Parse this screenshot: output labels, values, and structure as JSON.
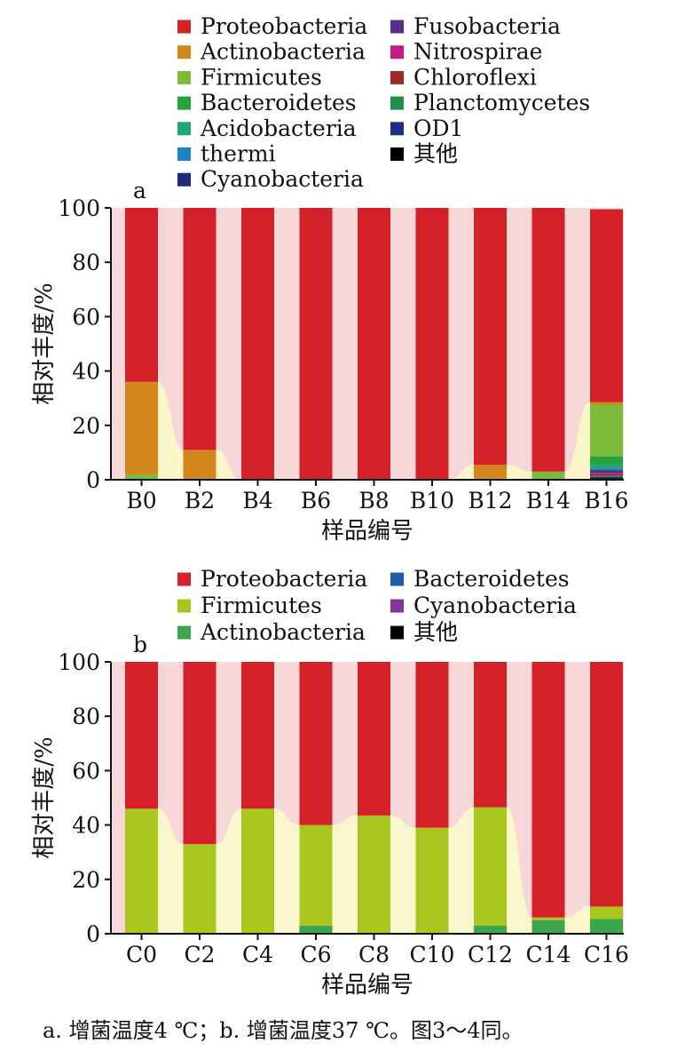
{
  "caption": "a. 增菌温度4 ℃；b. 增菌温度37 ℃。图3～4同。",
  "chart_data": [
    {
      "type": "bar",
      "stacked": true,
      "panel_label": "a",
      "xlabel": "样品编号",
      "ylabel": "相对丰度/%",
      "ylim": [
        0,
        100
      ],
      "yticks": [
        0,
        20,
        40,
        60,
        80,
        100
      ],
      "categories": [
        "B0",
        "B2",
        "B4",
        "B6",
        "B8",
        "B10",
        "B12",
        "B14",
        "B16"
      ],
      "legend": [
        {
          "name": "Proteobacteria",
          "color": "#d42027"
        },
        {
          "name": "Actinobacteria",
          "color": "#d4851e"
        },
        {
          "name": "Firmicutes",
          "color": "#7cbc3a"
        },
        {
          "name": "Bacteroidetes",
          "color": "#23a33b"
        },
        {
          "name": "Acidobacteria",
          "color": "#1fa57a"
        },
        {
          "name": "thermi",
          "color": "#1b83c6"
        },
        {
          "name": "Cyanobacteria",
          "color": "#1e2a78"
        },
        {
          "name": "Fusobacteria",
          "color": "#5a2d8c"
        },
        {
          "name": "Nitrospirae",
          "color": "#c61b86"
        },
        {
          "name": "Chloroflexi",
          "color": "#9b2a2a"
        },
        {
          "name": "Planctomycetes",
          "color": "#22904a"
        },
        {
          "name": "OD1",
          "color": "#1a2f88"
        },
        {
          "name": "其他",
          "color": "#000000"
        }
      ],
      "stack_order": [
        "其他",
        "OD1",
        "Planctomycetes",
        "Chloroflexi",
        "Nitrospirae",
        "Fusobacteria",
        "Cyanobacteria",
        "thermi",
        "Acidobacteria",
        "Bacteroidetes",
        "Firmicutes",
        "Actinobacteria",
        "Proteobacteria"
      ],
      "values": {
        "B0": {
          "Firmicutes": 2,
          "Actinobacteria": 34,
          "Proteobacteria": 64
        },
        "B2": {
          "Firmicutes": 0.5,
          "Actinobacteria": 10.5,
          "Proteobacteria": 89
        },
        "B4": {
          "Proteobacteria": 100
        },
        "B6": {
          "Proteobacteria": 100
        },
        "B8": {
          "Proteobacteria": 100
        },
        "B10": {
          "Proteobacteria": 100
        },
        "B12": {
          "Firmicutes": 0.5,
          "Actinobacteria": 5,
          "Proteobacteria": 94.5
        },
        "B14": {
          "Firmicutes": 3,
          "Proteobacteria": 97
        },
        "B16": {
          "其他": 0.6,
          "OD1": 0.4,
          "Planctomycetes": 0.4,
          "Chloroflexi": 0.6,
          "Nitrospirae": 0.5,
          "Fusobacteria": 0.5,
          "Cyanobacteria": 0.5,
          "thermi": 0.6,
          "Acidobacteria": 1.5,
          "Bacteroidetes": 3,
          "Firmicutes": 19,
          "Actinobacteria": 0.9,
          "Proteobacteria": 71
        }
      }
    },
    {
      "type": "bar",
      "stacked": true,
      "panel_label": "b",
      "xlabel": "样品编号",
      "ylabel": "相对丰度/%",
      "ylim": [
        0,
        100
      ],
      "yticks": [
        0,
        20,
        40,
        60,
        80,
        100
      ],
      "categories": [
        "C0",
        "C2",
        "C4",
        "C6",
        "C8",
        "C10",
        "C12",
        "C14",
        "C16"
      ],
      "legend": [
        {
          "name": "Proteobacteria",
          "color": "#d42027"
        },
        {
          "name": "Firmicutes",
          "color": "#a8c520"
        },
        {
          "name": "Actinobacteria",
          "color": "#3aa84a"
        },
        {
          "name": "Bacteroidetes",
          "color": "#1e5fa8"
        },
        {
          "name": "Cyanobacteria",
          "color": "#7e3794"
        },
        {
          "name": "其他",
          "color": "#000000"
        }
      ],
      "stack_order": [
        "其他",
        "Cyanobacteria",
        "Bacteroidetes",
        "Actinobacteria",
        "Firmicutes",
        "Proteobacteria"
      ],
      "values": {
        "C0": {
          "Firmicutes": 46,
          "Proteobacteria": 54
        },
        "C2": {
          "Firmicutes": 33,
          "Proteobacteria": 67
        },
        "C4": {
          "Firmicutes": 46,
          "Proteobacteria": 54
        },
        "C6": {
          "Actinobacteria": 3,
          "Firmicutes": 37,
          "Proteobacteria": 60
        },
        "C8": {
          "Firmicutes": 43.5,
          "Proteobacteria": 56.5
        },
        "C10": {
          "Firmicutes": 39,
          "Proteobacteria": 61
        },
        "C12": {
          "Actinobacteria": 3,
          "Firmicutes": 43.5,
          "Proteobacteria": 53.5
        },
        "C14": {
          "Actinobacteria": 5,
          "Firmicutes": 1,
          "Proteobacteria": 94
        },
        "C16": {
          "Actinobacteria": 5.5,
          "Firmicutes": 4.5,
          "Proteobacteria": 90
        }
      }
    }
  ]
}
